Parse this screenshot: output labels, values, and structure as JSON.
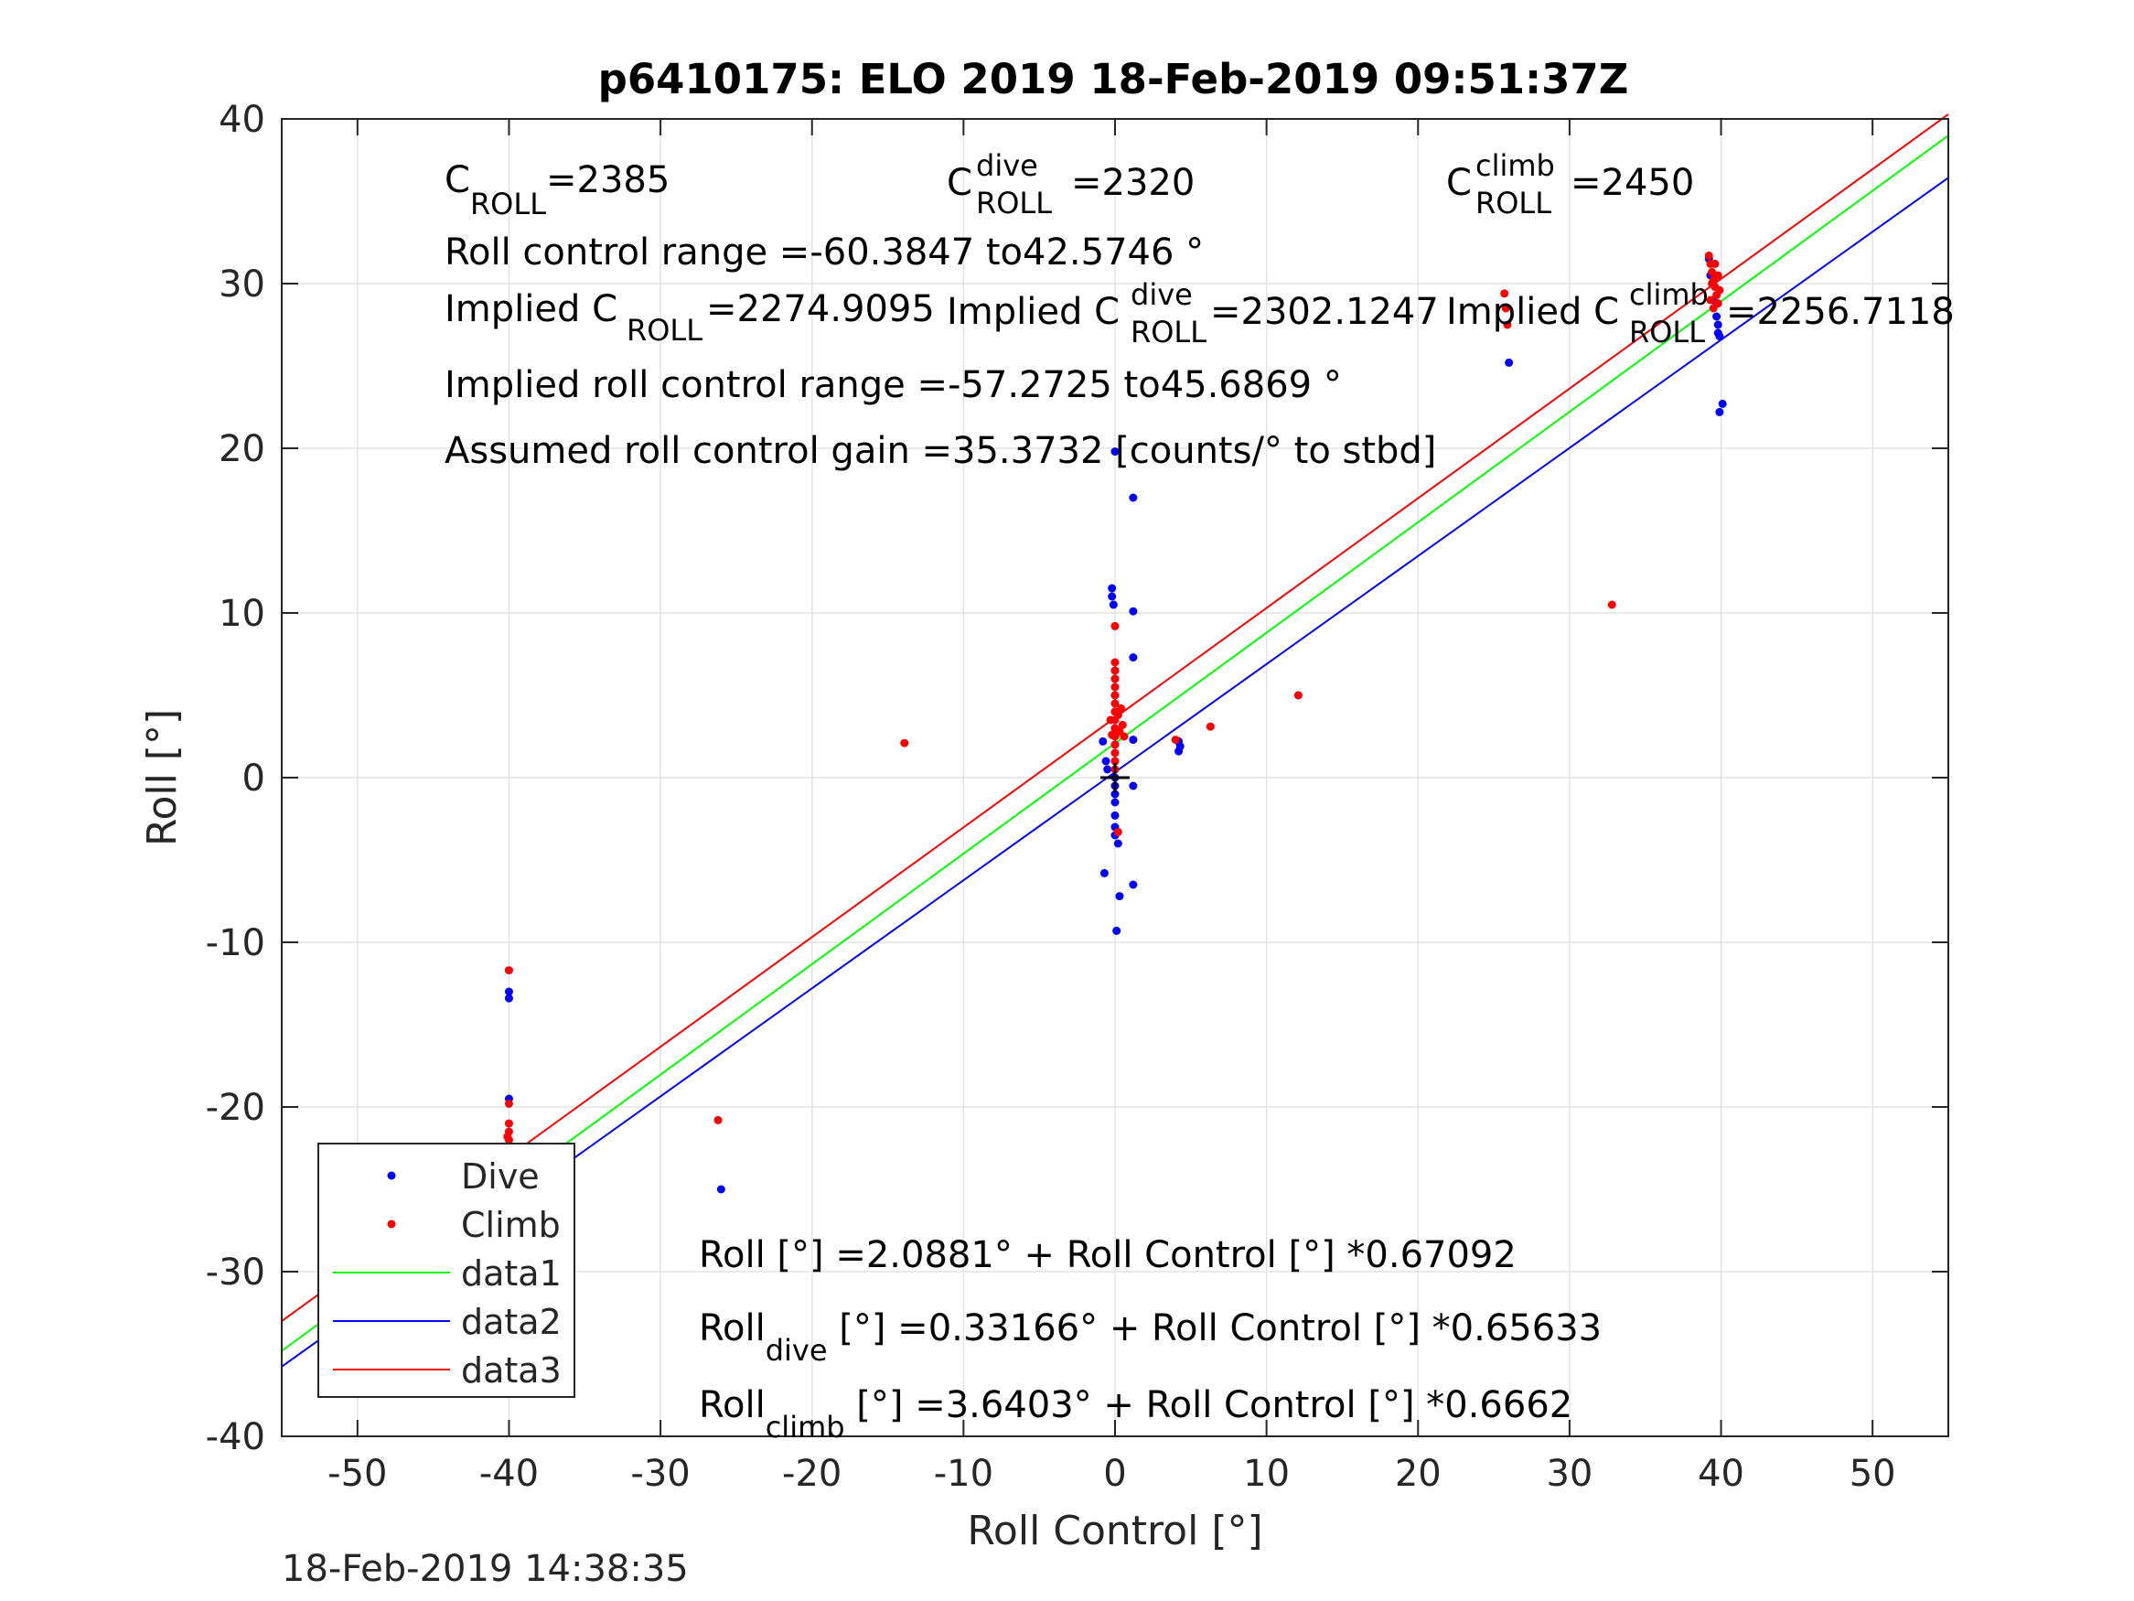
{
  "chart_data": {
    "type": "scatter",
    "title": "p6410175: ELO 2019 18-Feb-2019 09:51:37Z",
    "xlabel": "Roll Control [°]",
    "ylabel": "Roll [°]",
    "xlim": [
      -55,
      55
    ],
    "ylim": [
      -40,
      40
    ],
    "xticks": [
      -50,
      -40,
      -30,
      -20,
      -10,
      0,
      10,
      20,
      30,
      40,
      50
    ],
    "yticks": [
      -40,
      -30,
      -20,
      -10,
      0,
      10,
      20,
      30,
      40
    ],
    "grid": true,
    "legend_position": "bottom-left",
    "timestamp": "18-Feb-2019 14:38:35",
    "series": [
      {
        "name": "Dive",
        "kind": "points",
        "color": "#0000ff",
        "points": [
          [
            -40,
            -19.5
          ],
          [
            -40,
            -13
          ],
          [
            -40,
            -13.4
          ],
          [
            -40,
            -24.5
          ],
          [
            -40,
            -25
          ],
          [
            -40,
            -25.5
          ],
          [
            -40,
            -26
          ],
          [
            -40,
            -26.5
          ],
          [
            -40,
            -27
          ],
          [
            -40,
            -27.5
          ],
          [
            -40,
            -28
          ],
          [
            -40.2,
            -28.2
          ],
          [
            -39.8,
            -26.8
          ],
          [
            -40.2,
            -25.8
          ],
          [
            -26,
            -25
          ],
          [
            -0.8,
            2.2
          ],
          [
            -0.6,
            1
          ],
          [
            -0.5,
            0.5
          ],
          [
            -0.7,
            -5.8
          ],
          [
            -0.2,
            11.5
          ],
          [
            -0.2,
            11
          ],
          [
            -0.1,
            10.5
          ],
          [
            0,
            19.8
          ],
          [
            0,
            6.5
          ],
          [
            0,
            6
          ],
          [
            0,
            5
          ],
          [
            0,
            4
          ],
          [
            0,
            3
          ],
          [
            0,
            2
          ],
          [
            0,
            1
          ],
          [
            0,
            0.5
          ],
          [
            0,
            0
          ],
          [
            0,
            -0.5
          ],
          [
            0,
            -1
          ],
          [
            0,
            -1.5
          ],
          [
            0,
            -2.3
          ],
          [
            0,
            -3
          ],
          [
            0,
            -3.5
          ],
          [
            0.2,
            -4
          ],
          [
            0.1,
            -9.3
          ],
          [
            0.3,
            -7.2
          ],
          [
            1.2,
            17
          ],
          [
            1.2,
            10.1
          ],
          [
            1.2,
            7.3
          ],
          [
            1.2,
            2.3
          ],
          [
            1.2,
            -6.5
          ],
          [
            1.2,
            -0.5
          ],
          [
            4.2,
            2.2
          ],
          [
            4.2,
            1.6
          ],
          [
            4.3,
            1.9
          ],
          [
            39.2,
            31.5
          ],
          [
            39.3,
            30.5
          ],
          [
            39.5,
            29
          ],
          [
            39.7,
            28
          ],
          [
            39.8,
            27.5
          ],
          [
            39.8,
            27
          ],
          [
            39.9,
            26.8
          ],
          [
            40.1,
            22.7
          ],
          [
            39.9,
            22.2
          ],
          [
            26,
            25.2
          ]
        ]
      },
      {
        "name": "Climb",
        "kind": "points",
        "color": "#ff0000",
        "points": [
          [
            -40,
            -11.7
          ],
          [
            -40,
            -19.8
          ],
          [
            -40,
            -21
          ],
          [
            -40,
            -21.5
          ],
          [
            -40,
            -22
          ],
          [
            -40,
            -22.5
          ],
          [
            -40,
            -23
          ],
          [
            -40,
            -23.5
          ],
          [
            -40,
            -24
          ],
          [
            -40.2,
            -22.7
          ],
          [
            -39.8,
            -23.2
          ],
          [
            -40.1,
            -21.8
          ],
          [
            -26.2,
            -20.8
          ],
          [
            -13.9,
            2.1
          ],
          [
            0,
            9.2
          ],
          [
            0,
            7
          ],
          [
            0,
            6.5
          ],
          [
            0,
            6
          ],
          [
            0,
            5.5
          ],
          [
            0,
            5
          ],
          [
            0,
            4.5
          ],
          [
            0,
            4
          ],
          [
            0,
            3.5
          ],
          [
            0,
            3
          ],
          [
            0,
            2.5
          ],
          [
            0,
            2
          ],
          [
            0,
            1.5
          ],
          [
            0,
            1
          ],
          [
            0,
            0.5
          ],
          [
            0.2,
            3.8
          ],
          [
            0.3,
            2.8
          ],
          [
            0.4,
            4.2
          ],
          [
            0.5,
            3.2
          ],
          [
            -0.3,
            3.5
          ],
          [
            -0.2,
            2.6
          ],
          [
            0.6,
            2.5
          ],
          [
            0.2,
            -3.3
          ],
          [
            4,
            2.3
          ],
          [
            6.3,
            3.1
          ],
          [
            12.1,
            5
          ],
          [
            32.8,
            10.5
          ],
          [
            25.7,
            29.4
          ],
          [
            25.8,
            28.5
          ],
          [
            25.9,
            27.5
          ],
          [
            39.2,
            31.7
          ],
          [
            39.3,
            31.2
          ],
          [
            39.4,
            30.7
          ],
          [
            39.5,
            30.2
          ],
          [
            39.6,
            29.8
          ],
          [
            39.7,
            29.3
          ],
          [
            39.8,
            28.8
          ],
          [
            39.6,
            31.2
          ],
          [
            39.4,
            30
          ],
          [
            39.5,
            28.5
          ],
          [
            39.8,
            30.5
          ],
          [
            39.9,
            29.6
          ],
          [
            39.3,
            29
          ]
        ]
      },
      {
        "name": "data1",
        "kind": "line",
        "color": "#00ff00",
        "intercept": 2.0881,
        "slope": 0.67092
      },
      {
        "name": "data2",
        "kind": "line",
        "color": "#0000ff",
        "intercept": 0.33166,
        "slope": 0.65633
      },
      {
        "name": "data3",
        "kind": "line",
        "color": "#ff0000",
        "intercept": 3.6403,
        "slope": 0.6662
      }
    ],
    "origin_marker": [
      0,
      0
    ],
    "annotations": {
      "c_roll_main": "C",
      "c_roll_sub": "ROLL",
      "c_roll_value": "=2385",
      "c_dive_main": "C",
      "c_dive_sup": "dive",
      "c_dive_sub": "ROLL",
      "c_dive_value": "=2320",
      "c_climb_main": "C",
      "c_climb_sup": "climb",
      "c_climb_sub": "ROLL",
      "c_climb_value": "=2450",
      "roll_control_range": "Roll control range =-60.3847 to42.5746 °",
      "implied_c_roll_main": "Implied C",
      "implied_c_roll_sub": "ROLL",
      "implied_c_roll_value": " =2274.9095",
      "implied_c_dive_main": "Implied C",
      "implied_c_dive_sup": "dive",
      "implied_c_dive_sub": "ROLL",
      "implied_c_dive_value": " =2302.1247",
      "implied_c_climb_main": "Implied C",
      "implied_c_climb_sup": "climb",
      "implied_c_climb_sub": "ROLL",
      "implied_c_climb_value": "=2256.7118",
      "implied_roll_range": "Implied roll control range =-57.2725 to45.6869 °",
      "assumed_gain": "Assumed roll control gain =35.3732 [counts/° to stbd]",
      "fit_all": "Roll [°] =2.0881° + Roll Control [°] *0.67092",
      "fit_dive_main": "Roll",
      "fit_dive_sub": "dive",
      "fit_dive_rest": " [°] =0.33166° + Roll Control [°] *0.65633",
      "fit_climb_main": "Roll",
      "fit_climb_sub": "climb",
      "fit_climb_rest": " [°] =3.6403° + Roll Control [°] *0.6662"
    }
  }
}
